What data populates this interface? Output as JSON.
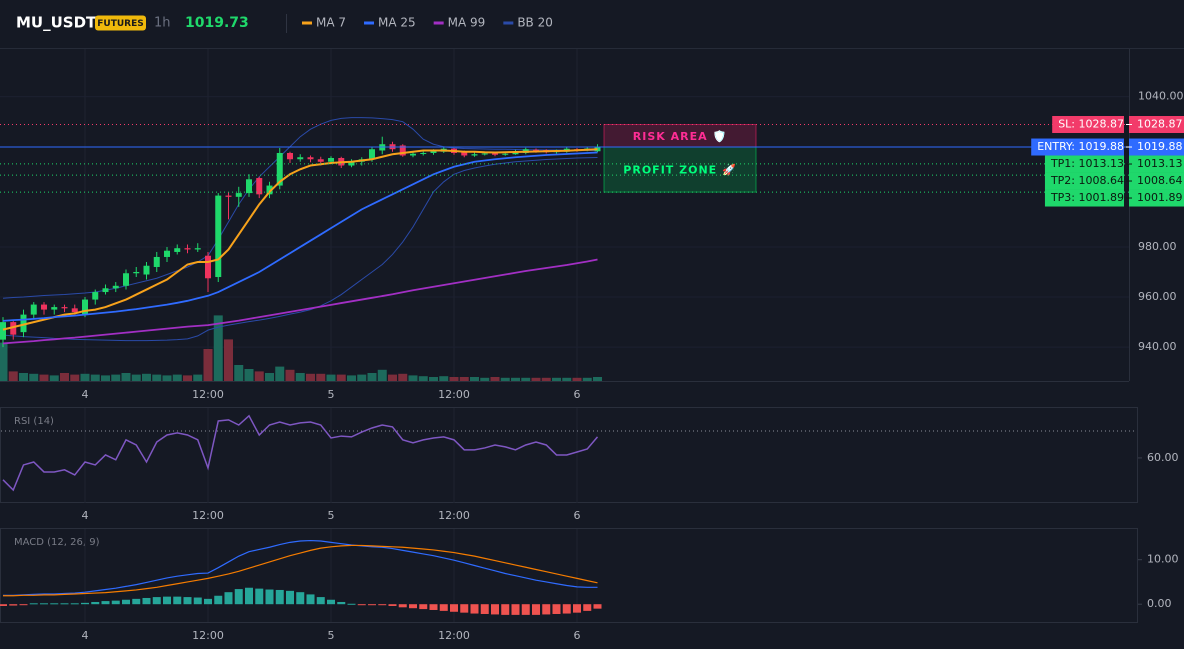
{
  "chart_data": [
    {
      "type": "candlestick",
      "title": "MU_USDT",
      "badge": "FUTURES",
      "interval": "1h",
      "last_price": 1019.73,
      "categories": [
        null,
        null,
        null,
        null,
        null,
        null,
        null,
        null,
        "4",
        null,
        null,
        null,
        null,
        null,
        null,
        null,
        null,
        null,
        null,
        null,
        "12:00",
        null,
        null,
        null,
        null,
        null,
        null,
        null,
        null,
        null,
        null,
        null,
        "5",
        null,
        null,
        null,
        null,
        null,
        null,
        null,
        null,
        null,
        null,
        null,
        "12:00",
        null,
        null,
        null,
        null,
        null,
        null,
        null,
        null,
        null,
        null,
        null,
        "6",
        null,
        null
      ],
      "open": [
        943,
        950,
        946,
        953,
        957,
        955,
        956,
        955.5,
        953,
        959,
        962,
        963.5,
        964.5,
        969.5,
        969,
        972,
        976,
        978,
        979.5,
        979,
        976.5,
        968,
        1000.5,
        1000,
        1001.5,
        1007.5,
        1001,
        1004.5,
        1017.5,
        1015,
        1015.8,
        1015,
        1014,
        1015.5,
        1012.5,
        1014,
        1015,
        1018.5,
        1021,
        1020.5,
        1016.5,
        1017.2,
        1017.5,
        1018,
        1019.2,
        1018,
        1016.5,
        1017,
        1017.3,
        1016.8,
        1017,
        1017.5,
        1018.8,
        1018.7,
        1017.8,
        1018,
        1019,
        1018.7,
        1018.2
      ],
      "high": [
        952,
        951,
        955,
        958,
        958,
        957,
        957,
        957,
        960,
        963,
        965,
        966,
        971,
        972,
        974,
        978,
        980,
        981,
        981,
        981.5,
        978,
        1001.5,
        1002,
        1004,
        1009,
        1008,
        1006,
        1019.5,
        1018,
        1017,
        1016.5,
        1016,
        1016.2,
        1016,
        1015,
        1015.8,
        1019.8,
        1024,
        1022,
        1021,
        1018,
        1018.5,
        1019,
        1020,
        1019.5,
        1018.5,
        1017.8,
        1018,
        1017.8,
        1018,
        1018.8,
        1019.6,
        1019.3,
        1019,
        1018.9,
        1019.8,
        1019.5,
        1020,
        1021
      ],
      "low": [
        940,
        943,
        944,
        951,
        953,
        953,
        954,
        953,
        952,
        957,
        961,
        962,
        963,
        968,
        967,
        970,
        974,
        977,
        977.5,
        978,
        962,
        966,
        991,
        996,
        1000,
        999.5,
        999.5,
        1003,
        1013.5,
        1014,
        1013.8,
        1012.5,
        1013,
        1011.5,
        1011.8,
        1012.5,
        1014,
        1017,
        1018,
        1016,
        1015.8,
        1016.5,
        1016.8,
        1017.5,
        1016.8,
        1015.8,
        1016,
        1016.5,
        1016.2,
        1016.4,
        1016.8,
        1017,
        1017.6,
        1017.3,
        1017.3,
        1017.6,
        1018,
        1018.2,
        1017.8
      ],
      "close": [
        950,
        945,
        953,
        957,
        955,
        956,
        955.5,
        954,
        959,
        962,
        963.5,
        964.5,
        969.5,
        970,
        972.5,
        976,
        978.5,
        979.5,
        979,
        979.5,
        967.5,
        1000.5,
        1000,
        1001.5,
        1007,
        1001,
        1004.5,
        1017.5,
        1015,
        1015.8,
        1015,
        1014,
        1015.5,
        1012.5,
        1014,
        1015,
        1019,
        1021,
        1019,
        1016.5,
        1017.2,
        1017.5,
        1018.2,
        1019.2,
        1017.5,
        1016.5,
        1017,
        1017.3,
        1016.8,
        1017.2,
        1018.2,
        1019,
        1018.4,
        1017.8,
        1018.2,
        1019.2,
        1018.7,
        1019.3,
        1019.73
      ],
      "up_color": "#1fd86b",
      "down_color": "#f0335e",
      "volume": [
        48,
        12,
        10,
        9,
        8,
        7,
        10,
        8,
        9,
        8,
        7,
        8,
        10,
        8,
        9,
        8,
        7,
        8,
        7,
        8,
        40,
        82,
        52,
        20,
        15,
        12,
        10,
        18,
        14,
        10,
        9,
        9,
        8,
        8,
        7,
        8,
        10,
        14,
        8,
        9,
        7,
        6,
        5,
        6,
        5,
        5,
        5,
        4,
        5,
        4,
        4,
        4,
        4,
        4,
        4,
        4,
        4,
        4,
        5
      ],
      "volume_lim": [
        0,
        100
      ],
      "volume_up_color": "#1d6a5c",
      "volume_down_color": "#7b2d3b",
      "overlays": [
        {
          "name": "MA 7",
          "color": "#f7a21b",
          "values": [
            947,
            948,
            949,
            950,
            951,
            952,
            953,
            953.5,
            954.5,
            955,
            956,
            957.5,
            959,
            961,
            963,
            965,
            967,
            970,
            973,
            974,
            974,
            975,
            979,
            985,
            991,
            997,
            1002,
            1006,
            1009,
            1011,
            1012.5,
            1013,
            1013.5,
            1013.8,
            1014,
            1014.5,
            1015,
            1016,
            1017,
            1017.5,
            1018,
            1018.5,
            1018.5,
            1018.5,
            1018.3,
            1018,
            1018,
            1017.8,
            1017.7,
            1017.8,
            1017.9,
            1018,
            1018.1,
            1018.2,
            1018.3,
            1018.4,
            1018.6,
            1018.8,
            1019
          ]
        },
        {
          "name": "MA 25",
          "color": "#2f6bff",
          "values": [
            950.5,
            950.8,
            951,
            951.3,
            951.6,
            952,
            952.3,
            952.6,
            953,
            953.4,
            953.8,
            954.2,
            954.7,
            955.2,
            955.8,
            956.4,
            957,
            957.7,
            958.5,
            959.5,
            960.5,
            962,
            964,
            966,
            968,
            970,
            972.5,
            975,
            977.5,
            980,
            982.5,
            985,
            987.5,
            990,
            992.5,
            995,
            997,
            999,
            1001,
            1003,
            1005,
            1007,
            1009,
            1010.5,
            1012,
            1013,
            1014,
            1014.5,
            1015,
            1015.4,
            1015.8,
            1016.1,
            1016.4,
            1016.7,
            1016.9,
            1017.1,
            1017.3,
            1017.5,
            1017.7
          ]
        },
        {
          "name": "MA 99",
          "color": "#a22fc4",
          "values": [
            941.5,
            941.8,
            942.1,
            942.4,
            942.8,
            943.1,
            943.5,
            943.8,
            944.2,
            944.6,
            945,
            945.4,
            945.8,
            946.2,
            946.6,
            947,
            947.4,
            947.8,
            948.2,
            948.5,
            948.8,
            949.4,
            950,
            950.6,
            951.3,
            952,
            952.7,
            953.4,
            954.1,
            954.8,
            955.5,
            956.2,
            956.9,
            957.6,
            958.3,
            959,
            959.7,
            960.4,
            961.1,
            961.9,
            962.7,
            963.4,
            964.1,
            964.8,
            965.5,
            966.2,
            966.9,
            967.6,
            968.3,
            969,
            969.7,
            970.4,
            971,
            971.6,
            972.2,
            972.8,
            973.5,
            974.2,
            975
          ]
        },
        {
          "name": "BB 20",
          "color": "#2a4aa8",
          "upper": [
            959.5,
            959.8,
            960,
            960.3,
            960.6,
            960.8,
            961,
            961.3,
            961.6,
            962,
            962.7,
            963.5,
            964.5,
            965.5,
            966.5,
            967.5,
            969,
            970.5,
            972,
            974,
            976.5,
            983,
            990,
            997,
            1003,
            1008,
            1012,
            1016,
            1020,
            1024,
            1027,
            1029,
            1030.5,
            1031.3,
            1031.6,
            1031.6,
            1031.5,
            1031.2,
            1030.8,
            1030,
            1027,
            1023,
            1021,
            1020,
            1019.5,
            1019.3,
            1019.2,
            1019.1,
            1019,
            1019,
            1018.9,
            1018.8,
            1018.8,
            1018.7,
            1018.7,
            1018.6,
            1018.6,
            1018.5,
            1018.5
          ],
          "lower": [
            944.8,
            944.5,
            944.2,
            944,
            943.8,
            943.5,
            943.3,
            943.1,
            943,
            942.9,
            942.8,
            942.7,
            942.6,
            942.6,
            942.6,
            942.7,
            942.8,
            943,
            943.3,
            944.5,
            946.8,
            948,
            948.8,
            949.5,
            950.2,
            950.8,
            951.5,
            952.3,
            953.2,
            954,
            955,
            956.5,
            958.5,
            961,
            964,
            967,
            970,
            973,
            977,
            982,
            988,
            995,
            1002,
            1006,
            1009,
            1010.5,
            1011.5,
            1012.3,
            1013,
            1013.5,
            1014,
            1014.3,
            1014.6,
            1014.9,
            1015.1,
            1015.3,
            1015.5,
            1015.6,
            1015.7
          ]
        }
      ],
      "ylim": [
        926.5,
        1059
      ],
      "yticks": [
        {
          "value": 940,
          "label": "940.00"
        },
        {
          "value": 960,
          "label": "960.00"
        },
        {
          "value": 980,
          "label": "980.00"
        },
        {
          "value": 1040,
          "label": "1040.00"
        }
      ],
      "grid": true,
      "levels": [
        {
          "name": "SL: 1028.87",
          "value": 1028.87,
          "color": "#f23b6a",
          "text_color": "#ffffff",
          "style": "dotted"
        },
        {
          "name": "ENTRY: 1019.88",
          "value": 1019.88,
          "color": "#2f6bff",
          "text_color": "#ffffff",
          "style": "solid"
        },
        {
          "name": "TP1: 1013.13",
          "value": 1013.13,
          "color": "#1fd86b",
          "text_color": "#0b1a10",
          "style": "dotted"
        },
        {
          "name": "TP2: 1008.64",
          "value": 1008.64,
          "color": "#1fd86b",
          "text_color": "#0b1a10",
          "style": "dotted"
        },
        {
          "name": "TP3: 1001.89",
          "value": 1001.89,
          "color": "#1fd86b",
          "text_color": "#0b1a10",
          "style": "dotted"
        }
      ],
      "zones": [
        {
          "label": "RISK AREA 🛡️",
          "top": 1028.87,
          "bottom": 1019.88,
          "color": "#e91e63"
        },
        {
          "label": "PROFIT ZONE 🚀",
          "top": 1019.88,
          "bottom": 1001.89,
          "color": "#00c853"
        }
      ]
    },
    {
      "type": "line",
      "title": "RSI (14)",
      "color": "#7e57c2",
      "values": [
        51.9,
        48.1,
        57.4,
        58.5,
        54.8,
        54.8,
        55.6,
        53.7,
        58.5,
        57.4,
        61.1,
        59.3,
        66.7,
        64.8,
        58.5,
        65.9,
        68.5,
        69.3,
        68.5,
        66.7,
        56.3,
        73.7,
        74.1,
        72.2,
        75.6,
        68.5,
        72.2,
        73.3,
        72.2,
        73,
        73.3,
        72.2,
        67.4,
        68.1,
        67.8,
        69.6,
        71.1,
        72.2,
        71.5,
        66.7,
        65.6,
        66.7,
        67.4,
        67.8,
        66.7,
        63,
        63,
        63.7,
        64.8,
        64.1,
        63,
        64.8,
        65.9,
        64.8,
        61.1,
        61.1,
        62.2,
        63.3,
        67.8
      ],
      "ylim": [
        43.3,
        78.5
      ],
      "yticks": [
        {
          "value": 60,
          "label": "60.00"
        }
      ],
      "reference_line": 70
    },
    {
      "type": "macd",
      "title": "MACD (12, 26, 9)",
      "series": [
        {
          "color": "#2f6bff",
          "values": [
            2.0,
            2.0,
            2.1,
            2.2,
            2.3,
            2.3,
            2.4,
            2.5,
            2.7,
            3.0,
            3.3,
            3.6,
            4.0,
            4.4,
            4.9,
            5.4,
            5.9,
            6.3,
            6.6,
            6.9,
            7.0,
            8.2,
            9.5,
            10.8,
            11.8,
            12.3,
            12.8,
            13.4,
            13.9,
            14.2,
            14.3,
            14.2,
            13.9,
            13.6,
            13.3,
            13.1,
            12.9,
            12.8,
            12.5,
            12.1,
            11.7,
            11.3,
            10.9,
            10.4,
            9.9,
            9.3,
            8.7,
            8.1,
            7.5,
            6.9,
            6.4,
            5.9,
            5.4,
            5.0,
            4.6,
            4.2,
            3.9,
            3.8,
            3.8
          ]
        },
        {
          "color": "#f57c00",
          "values": [
            1.9,
            1.9,
            2.0,
            2.0,
            2.1,
            2.1,
            2.2,
            2.3,
            2.4,
            2.5,
            2.6,
            2.8,
            3.0,
            3.2,
            3.5,
            3.8,
            4.2,
            4.6,
            5.0,
            5.4,
            5.8,
            6.3,
            6.8,
            7.4,
            8.1,
            8.8,
            9.5,
            10.2,
            10.9,
            11.5,
            12.1,
            12.6,
            12.9,
            13.1,
            13.2,
            13.2,
            13.1,
            13.0,
            12.9,
            12.8,
            12.6,
            12.4,
            12.2,
            11.9,
            11.6,
            11.2,
            10.8,
            10.3,
            9.8,
            9.3,
            8.8,
            8.3,
            7.8,
            7.3,
            6.8,
            6.3,
            5.8,
            5.3,
            4.8
          ]
        }
      ],
      "histogram": {
        "up_color": "#26a69a",
        "down_color": "#ef5350",
        "values": [
          -0.4,
          -0.3,
          -0.2,
          0.2,
          0.2,
          0.2,
          0.2,
          0.2,
          0.3,
          0.5,
          0.7,
          0.8,
          1.0,
          1.2,
          1.4,
          1.6,
          1.7,
          1.7,
          1.6,
          1.5,
          1.2,
          1.9,
          2.7,
          3.4,
          3.7,
          3.5,
          3.3,
          3.2,
          3.0,
          2.7,
          2.2,
          1.6,
          1.0,
          0.5,
          0.1,
          -0.1,
          -0.2,
          -0.2,
          -0.4,
          -0.7,
          -0.9,
          -1.1,
          -1.3,
          -1.5,
          -1.7,
          -1.9,
          -2.1,
          -2.2,
          -2.3,
          -2.4,
          -2.4,
          -2.4,
          -2.4,
          -2.3,
          -2.2,
          -2.1,
          -1.9,
          -1.5,
          -1.0
        ]
      },
      "ylim": [
        -4.0,
        16.9
      ],
      "yticks": [
        {
          "value": 0,
          "label": "0.00"
        },
        {
          "value": 10,
          "label": "10.00"
        }
      ]
    }
  ]
}
